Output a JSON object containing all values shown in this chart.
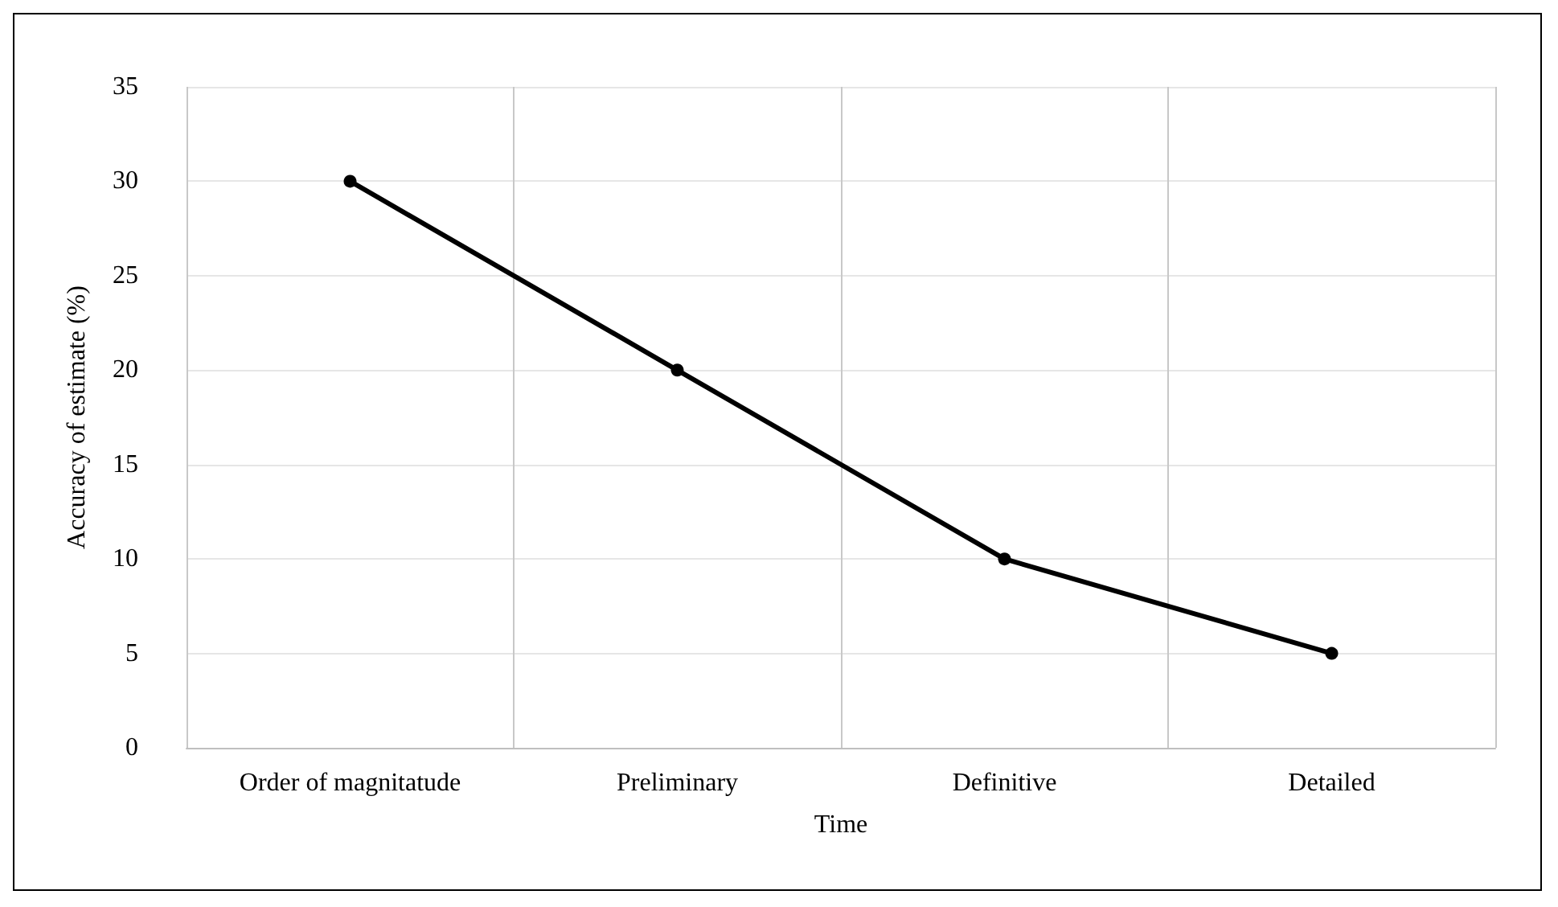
{
  "chart_data": {
    "type": "line",
    "xlabel": "Time",
    "ylabel": "Accuracy of estimate (%)",
    "categories": [
      "Order of magnitatude",
      "Preliminary",
      "Definitive",
      "Detailed"
    ],
    "series": [
      {
        "color": "#000000",
        "values": [
          30,
          20,
          10,
          5
        ]
      }
    ],
    "ylim": [
      0,
      35
    ],
    "yticks": [
      0,
      5,
      10,
      15,
      20,
      25,
      30,
      35
    ],
    "grid": true,
    "marker": "circle",
    "line_style": "solid"
  }
}
